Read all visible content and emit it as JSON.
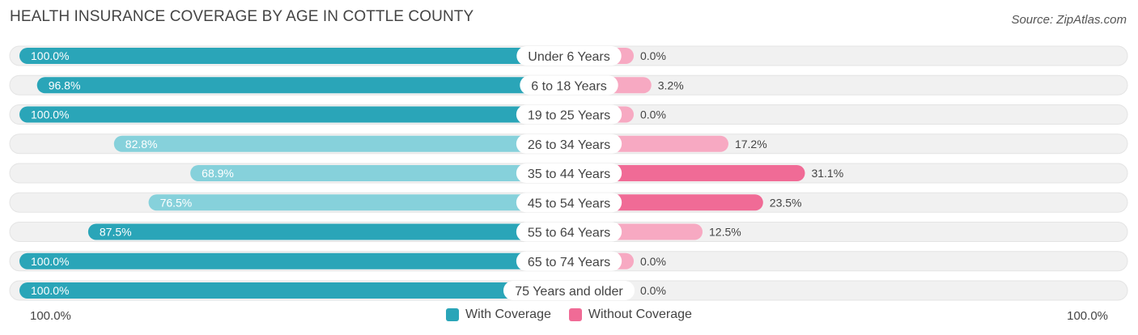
{
  "title": "HEALTH INSURANCE COVERAGE BY AGE IN COTTLE COUNTY",
  "source": "Source: ZipAtlas.com",
  "colors": {
    "with_strong": "#2aa5b8",
    "with_light": "#86d1db",
    "without_strong": "#f06b96",
    "without_light": "#f7a9c2",
    "track": "#f1f1f1"
  },
  "chart_data": {
    "type": "bar",
    "orientation": "horizontal-diverging",
    "title": "HEALTH INSURANCE COVERAGE BY AGE IN COTTLE COUNTY",
    "categories": [
      "Under 6 Years",
      "6 to 18 Years",
      "19 to 25 Years",
      "26 to 34 Years",
      "35 to 44 Years",
      "45 to 54 Years",
      "55 to 64 Years",
      "65 to 74 Years",
      "75 Years and older"
    ],
    "series": [
      {
        "name": "With Coverage",
        "values": [
          100.0,
          96.8,
          100.0,
          82.8,
          68.9,
          76.5,
          87.5,
          100.0,
          100.0
        ],
        "labels": [
          "100.0%",
          "96.8%",
          "100.0%",
          "82.8%",
          "68.9%",
          "76.5%",
          "87.5%",
          "100.0%",
          "100.0%"
        ]
      },
      {
        "name": "Without Coverage",
        "values": [
          0.0,
          3.2,
          0.0,
          17.2,
          31.1,
          23.5,
          12.5,
          0.0,
          0.0
        ],
        "labels": [
          "0.0%",
          "3.2%",
          "0.0%",
          "17.2%",
          "31.1%",
          "23.5%",
          "12.5%",
          "0.0%",
          "0.0%"
        ]
      }
    ],
    "xlim": [
      0,
      100
    ],
    "axis_left_label": "100.0%",
    "axis_right_label": "100.0%",
    "legend": [
      "With Coverage",
      "Without Coverage"
    ],
    "legend_position": "bottom-center"
  }
}
